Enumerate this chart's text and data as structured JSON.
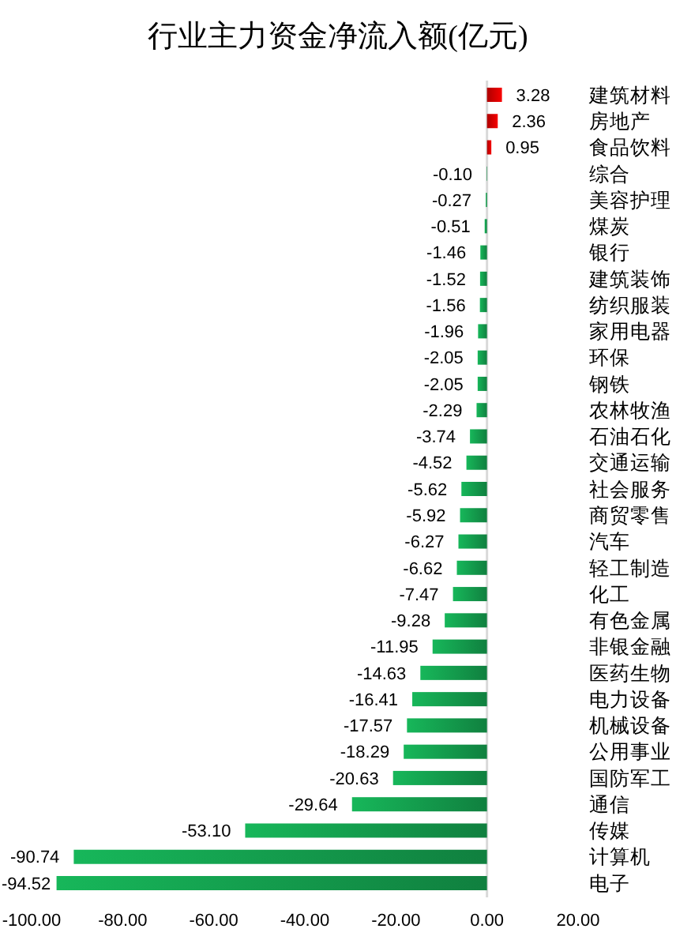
{
  "chart_data": {
    "type": "bar",
    "title": "行业主力资金净流入额(亿元)",
    "orientation": "horizontal",
    "categories": [
      "建筑材料",
      "房地产",
      "食品饮料",
      "综合",
      "美容护理",
      "煤炭",
      "银行",
      "建筑装饰",
      "纺织服装",
      "家用电器",
      "环保",
      "钢铁",
      "农林牧渔",
      "石油石化",
      "交通运输",
      "社会服务",
      "商贸零售",
      "汽车",
      "轻工制造",
      "化工",
      "有色金属",
      "非银金融",
      "医药生物",
      "电力设备",
      "机械设备",
      "公用事业",
      "国防军工",
      "通信",
      "传媒",
      "计算机",
      "电子"
    ],
    "values": [
      3.28,
      2.36,
      0.95,
      -0.1,
      -0.27,
      -0.51,
      -1.46,
      -1.52,
      -1.56,
      -1.96,
      -2.05,
      -2.05,
      -2.29,
      -3.74,
      -4.52,
      -5.62,
      -5.92,
      -6.27,
      -6.62,
      -7.47,
      -9.28,
      -11.95,
      -14.63,
      -16.41,
      -17.57,
      -18.29,
      -20.63,
      -29.64,
      -53.1,
      -90.74,
      -94.52
    ],
    "colors": [
      "#cc0000",
      "#cc0000",
      "#cc0000",
      "#13964a",
      "#13964a",
      "#13964a",
      "#13964a",
      "#13964a",
      "#13964a",
      "#13964a",
      "#13964a",
      "#13964a",
      "#13964a",
      "#13964a",
      "#13964a",
      "#13964a",
      "#13964a",
      "#13964a",
      "#13964a",
      "#13964a",
      "#13964a",
      "#13964a",
      "#13964a",
      "#13964a",
      "#13964a",
      "#13964a",
      "#13964a",
      "#13964a",
      "#13964a",
      "#13964a",
      "#13964a"
    ],
    "value_labels": [
      "3.28",
      "2.36",
      "0.95",
      "-0.10",
      "-0.27",
      "-0.51",
      "-1.46",
      "-1.52",
      "-1.56",
      "-1.96",
      "-2.05",
      "-2.05",
      "-2.29",
      "-3.74",
      "-4.52",
      "-5.62",
      "-5.92",
      "-6.27",
      "-6.62",
      "-7.47",
      "-9.28",
      "-11.95",
      "-14.63",
      "-16.41",
      "-17.57",
      "-18.29",
      "-20.63",
      "-29.64",
      "-53.10",
      "-90.74",
      "-94.52"
    ],
    "xlim": [
      -100,
      20
    ],
    "xticks": [
      {
        "value": -100,
        "label": "-100.00"
      },
      {
        "value": -80,
        "label": "-80.00"
      },
      {
        "value": -60,
        "label": "-60.00"
      },
      {
        "value": -40,
        "label": "-40.00"
      },
      {
        "value": -20,
        "label": "-20.00"
      },
      {
        "value": 0,
        "label": "0.00"
      },
      {
        "value": 20,
        "label": "20.00"
      }
    ]
  }
}
